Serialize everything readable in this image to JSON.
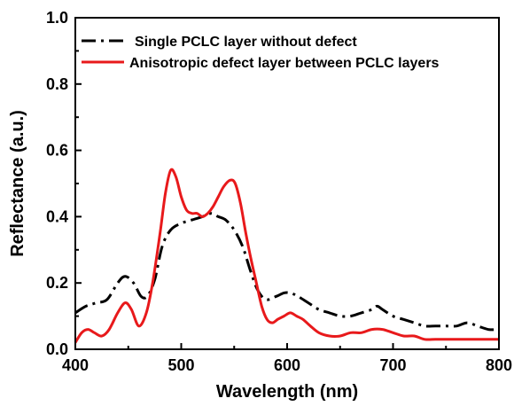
{
  "chart_data": {
    "type": "line",
    "title": "",
    "xlabel": "Wavelength (nm)",
    "ylabel": "Reflectance (a.u.)",
    "xlim": [
      400,
      800
    ],
    "ylim": [
      0.0,
      1.0
    ],
    "x_ticks": [
      400,
      500,
      600,
      700,
      800
    ],
    "x_tick_labels": [
      "400",
      "500",
      "600",
      "700",
      "800"
    ],
    "y_ticks": [
      0.0,
      0.2,
      0.4,
      0.6,
      0.8,
      1.0
    ],
    "y_tick_labels": [
      "0.0",
      "0.2",
      "0.4",
      "0.6",
      "0.8",
      "1.0"
    ],
    "grid": false,
    "legend_position": "top-right",
    "series": [
      {
        "name": "Single PCLC layer without defect",
        "color": "#000000",
        "line_style": "dash-dot",
        "x": [
          400,
          410,
          420,
          430,
          440,
          447,
          455,
          462,
          468,
          475,
          482,
          490,
          500,
          510,
          520,
          528,
          535,
          542,
          550,
          558,
          565,
          572,
          580,
          590,
          597,
          603,
          610,
          620,
          630,
          640,
          650,
          660,
          670,
          680,
          685,
          690,
          700,
          710,
          720,
          730,
          740,
          750,
          760,
          770,
          780,
          790,
          800
        ],
        "y": [
          0.11,
          0.13,
          0.14,
          0.15,
          0.2,
          0.22,
          0.2,
          0.16,
          0.16,
          0.21,
          0.31,
          0.36,
          0.38,
          0.39,
          0.4,
          0.41,
          0.4,
          0.39,
          0.36,
          0.31,
          0.24,
          0.18,
          0.15,
          0.16,
          0.17,
          0.17,
          0.16,
          0.14,
          0.12,
          0.11,
          0.1,
          0.1,
          0.11,
          0.12,
          0.13,
          0.12,
          0.1,
          0.09,
          0.08,
          0.07,
          0.07,
          0.07,
          0.07,
          0.08,
          0.07,
          0.06,
          0.06
        ]
      },
      {
        "name": "Anisotropic defect layer between PCLC layers",
        "color": "#e8191b",
        "line_style": "solid",
        "x": [
          400,
          406,
          412,
          418,
          425,
          432,
          440,
          447,
          453,
          460,
          467,
          473,
          480,
          485,
          490,
          495,
          500,
          505,
          510,
          515,
          520,
          525,
          530,
          535,
          540,
          546,
          551,
          556,
          561,
          566,
          571,
          576,
          581,
          586,
          591,
          597,
          603,
          609,
          615,
          622,
          630,
          640,
          650,
          660,
          670,
          680,
          690,
          700,
          710,
          720,
          730,
          740,
          750,
          760,
          770,
          780,
          790,
          800
        ],
        "y": [
          0.02,
          0.05,
          0.06,
          0.05,
          0.04,
          0.06,
          0.11,
          0.14,
          0.12,
          0.07,
          0.11,
          0.2,
          0.35,
          0.47,
          0.54,
          0.52,
          0.46,
          0.42,
          0.41,
          0.41,
          0.4,
          0.41,
          0.43,
          0.46,
          0.49,
          0.51,
          0.5,
          0.44,
          0.35,
          0.27,
          0.2,
          0.13,
          0.09,
          0.08,
          0.09,
          0.1,
          0.11,
          0.1,
          0.09,
          0.07,
          0.05,
          0.04,
          0.04,
          0.05,
          0.05,
          0.06,
          0.06,
          0.05,
          0.04,
          0.04,
          0.03,
          0.03,
          0.03,
          0.03,
          0.03,
          0.03,
          0.03,
          0.03
        ]
      }
    ]
  }
}
